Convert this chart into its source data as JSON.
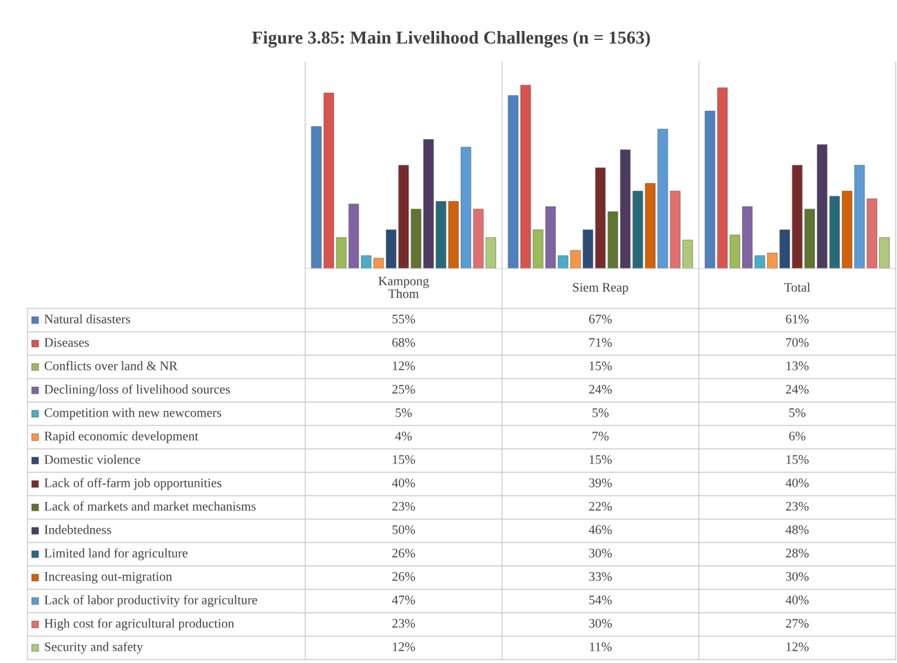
{
  "chart_data": {
    "type": "bar",
    "title": "Figure 3.85: Main Livelihood Challenges (n = 1563)",
    "categories": [
      "Kampong\nThom",
      "Siem Reap",
      "Total"
    ],
    "ylim": [
      0,
      80
    ],
    "tick_labels": false,
    "legend": "left",
    "series": [
      {
        "name": "Natural disasters",
        "color": "#4f81bd",
        "values": [
          55,
          67,
          61
        ],
        "value_labels": [
          "55%",
          "67%",
          "61%"
        ]
      },
      {
        "name": "Diseases",
        "color": "#d9534f",
        "values": [
          68,
          71,
          70
        ],
        "value_labels": [
          "68%",
          "71%",
          "70%"
        ]
      },
      {
        "name": "Conflicts over land & NR",
        "color": "#9bbb59",
        "values": [
          12,
          15,
          13
        ],
        "value_labels": [
          "12%",
          "15%",
          "13%"
        ]
      },
      {
        "name": "Declining/loss of livelihood sources",
        "color": "#8064a2",
        "values": [
          25,
          24,
          24
        ],
        "value_labels": [
          "25%",
          "24%",
          "24%"
        ]
      },
      {
        "name": "Competition with new newcomers",
        "color": "#4bacc6",
        "values": [
          5,
          5,
          5
        ],
        "value_labels": [
          "5%",
          "5%",
          "5%"
        ]
      },
      {
        "name": "Rapid economic development",
        "color": "#f79646",
        "values": [
          4,
          7,
          6
        ],
        "value_labels": [
          "4%",
          "7%",
          "6%"
        ]
      },
      {
        "name": "Domestic violence",
        "color": "#2c4d75",
        "values": [
          15,
          15,
          15
        ],
        "value_labels": [
          "15%",
          "15%",
          "15%"
        ]
      },
      {
        "name": "Lack of off-farm job opportunities",
        "color": "#772c2a",
        "values": [
          40,
          39,
          40
        ],
        "value_labels": [
          "40%",
          "39%",
          "40%"
        ]
      },
      {
        "name": "Lack of markets and market mechanisms",
        "color": "#5f7530",
        "values": [
          23,
          22,
          23
        ],
        "value_labels": [
          "23%",
          "22%",
          "23%"
        ]
      },
      {
        "name": "Indebtedness",
        "color": "#4d3b62",
        "values": [
          50,
          46,
          48
        ],
        "value_labels": [
          "50%",
          "46%",
          "48%"
        ]
      },
      {
        "name": "Limited land for agriculture",
        "color": "#276a7c",
        "values": [
          26,
          30,
          28
        ],
        "value_labels": [
          "26%",
          "30%",
          "28%"
        ]
      },
      {
        "name": "Increasing out-migration",
        "color": "#d2620a",
        "values": [
          26,
          33,
          30
        ],
        "value_labels": [
          "26%",
          "33%",
          "30%"
        ]
      },
      {
        "name": "Lack of labor productivity for agriculture",
        "color": "#5b9bd5",
        "values": [
          47,
          54,
          40
        ],
        "value_labels": [
          "47%",
          "54%",
          "40%"
        ]
      },
      {
        "name": "High cost for agricultural production",
        "color": "#e0706e",
        "values": [
          23,
          30,
          27
        ],
        "value_labels": [
          "23%",
          "30%",
          "27%"
        ]
      },
      {
        "name": "Security and safety",
        "color": "#afc97a",
        "values": [
          12,
          11,
          12
        ],
        "value_labels": [
          "12%",
          "11%",
          "12%"
        ]
      }
    ]
  }
}
